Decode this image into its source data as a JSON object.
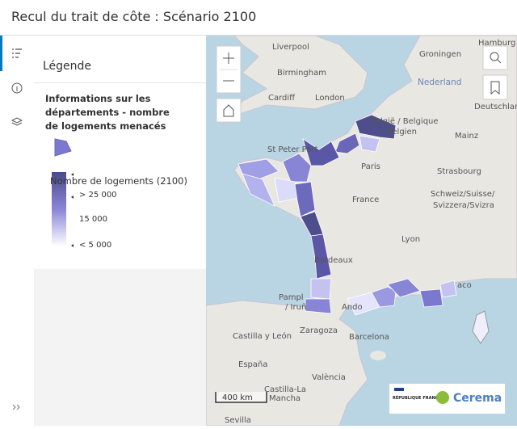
{
  "header": {
    "title": "Recul du trait de côte : Scénario 2100"
  },
  "legend": {
    "heading": "Légende",
    "layer_title": "Informations sur les départements - nombre de logements menacés",
    "field": "Nombre de logements (2100)",
    "labels": [
      "> 25 000",
      "15 000",
      "< 5 000"
    ]
  },
  "map": {
    "labels": [
      "Liverpool",
      "Hamburg",
      "Groningen",
      "Birmingham",
      "Nederland",
      "Cardiff",
      "London",
      "Deutschland",
      "België / Belgique",
      "/ Belgien",
      "Mainz",
      "St Peter Port",
      "Paris",
      "Strasbourg",
      "France",
      "Schweiz/Suisse/",
      "Svizzera/Svizra",
      "Lyon",
      "Bordeaux",
      "Pampl",
      "/ Iruñ",
      "Ando",
      "aco",
      "Castilla y León",
      "Zaragoza",
      "Barcelona",
      "España",
      "València",
      "Castilla-La",
      "Mancha",
      "Sevilla"
    ],
    "scale": "400 km"
  },
  "logos": {
    "republique": "RÉPUBLIQUE FRANÇAISE",
    "cerema": "Cerema"
  }
}
